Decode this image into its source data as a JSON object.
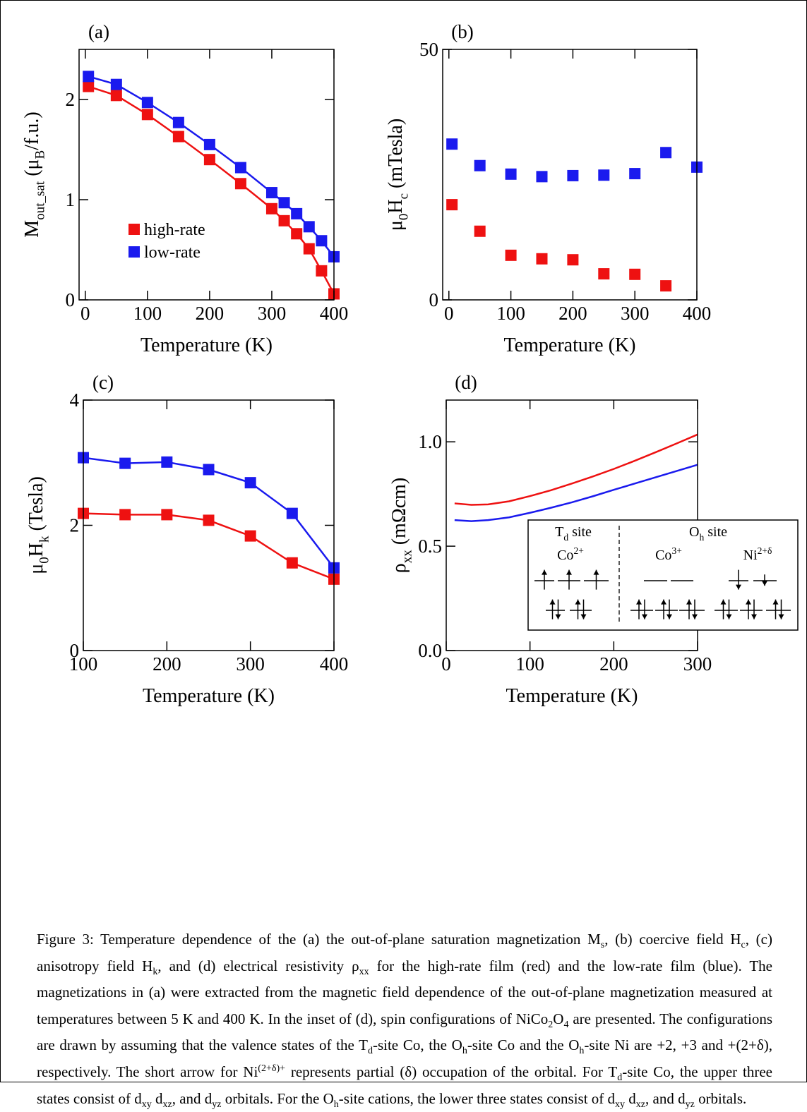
{
  "chart_data": [
    {
      "type": "line",
      "markers": true,
      "label": "(a)",
      "xlabel": [
        {
          "text": "Temperature (K)"
        }
      ],
      "ylabel": [
        {
          "text": "M"
        },
        {
          "text": "out_sat",
          "sub": true
        },
        {
          "text": " (μ"
        },
        {
          "text": "B",
          "sub": true
        },
        {
          "text": "/f.u.)"
        }
      ],
      "xlim": [
        -10,
        400
      ],
      "xticks": [
        0,
        100,
        200,
        300,
        400
      ],
      "ylim": [
        0,
        2.5
      ],
      "yticks": [
        0,
        1,
        2
      ],
      "legend": "lower left",
      "series": [
        {
          "name": "high-rate",
          "color": "#ee1111",
          "x": [
            5,
            50,
            100,
            150,
            200,
            250,
            300,
            320,
            340,
            360,
            380,
            400
          ],
          "values": [
            2.13,
            2.04,
            1.85,
            1.63,
            1.4,
            1.16,
            0.91,
            0.79,
            0.66,
            0.51,
            0.29,
            0.06
          ]
        },
        {
          "name": "low-rate",
          "color": "#1a1aee",
          "x": [
            5,
            50,
            100,
            150,
            200,
            250,
            300,
            320,
            340,
            360,
            380,
            400
          ],
          "values": [
            2.23,
            2.15,
            1.97,
            1.77,
            1.55,
            1.32,
            1.07,
            0.97,
            0.86,
            0.73,
            0.59,
            0.43
          ]
        }
      ]
    },
    {
      "type": "scatter",
      "label": "(b)",
      "xlabel": [
        {
          "text": "Temperature (K)"
        }
      ],
      "ylabel": [
        {
          "text": "μ"
        },
        {
          "text": "0",
          "sub": true
        },
        {
          "text": "H"
        },
        {
          "text": "c",
          "sub": true
        },
        {
          "text": " (mTesla)"
        }
      ],
      "xlim": [
        -10,
        400
      ],
      "xticks": [
        0,
        100,
        200,
        300,
        400
      ],
      "ylim": [
        0,
        50
      ],
      "yticks": [
        0,
        50
      ],
      "series": [
        {
          "color": "#ee1111",
          "x": [
            5,
            50,
            100,
            150,
            200,
            250,
            300,
            350
          ],
          "values": [
            19.0,
            13.7,
            8.9,
            8.2,
            8.0,
            5.2,
            5.1,
            2.8
          ]
        },
        {
          "color": "#1a1aee",
          "x": [
            5,
            50,
            100,
            150,
            200,
            250,
            300,
            350,
            400
          ],
          "values": [
            31.1,
            26.8,
            25.1,
            24.6,
            24.8,
            24.9,
            25.2,
            29.4,
            26.5
          ]
        }
      ]
    },
    {
      "type": "line",
      "markers": true,
      "label": "(c)",
      "xlabel": [
        {
          "text": "Temperature (K)"
        }
      ],
      "ylabel": [
        {
          "text": "μ"
        },
        {
          "text": "0",
          "sub": true
        },
        {
          "text": "H"
        },
        {
          "text": "k",
          "sub": true
        },
        {
          "text": " (Tesla)"
        }
      ],
      "xlim": [
        100,
        400
      ],
      "xticks": [
        100,
        200,
        300,
        400
      ],
      "ylim": [
        0,
        4
      ],
      "yticks": [
        0,
        2,
        4
      ],
      "series": [
        {
          "color": "#ee1111",
          "x": [
            100,
            150,
            200,
            250,
            300,
            350,
            400
          ],
          "values": [
            2.19,
            2.17,
            2.17,
            2.08,
            1.83,
            1.4,
            1.14
          ]
        },
        {
          "color": "#1a1aee",
          "x": [
            100,
            150,
            200,
            250,
            300,
            350,
            400
          ],
          "values": [
            3.08,
            2.99,
            3.01,
            2.89,
            2.68,
            2.19,
            1.32
          ]
        }
      ]
    },
    {
      "type": "line",
      "label": "(d)",
      "xlabel": [
        {
          "text": "Temperature (K)"
        }
      ],
      "ylabel": [
        {
          "text": "ρ"
        },
        {
          "text": "xx",
          "sub": true
        },
        {
          "text": " (mΩcm)"
        }
      ],
      "xlim": [
        0,
        300
      ],
      "xticks": [
        0,
        100,
        200,
        300
      ],
      "ylim": [
        0,
        1.2
      ],
      "yticks": [
        {
          "value": 0,
          "label": "0.0"
        },
        {
          "value": 0.5,
          "label": "0.5"
        },
        {
          "value": 1,
          "label": "1.0"
        }
      ],
      "series": [
        {
          "color": "#ee1111",
          "x": [
            10,
            30,
            50,
            75,
            100,
            125,
            150,
            175,
            200,
            225,
            250,
            275,
            300
          ],
          "values": [
            0.705,
            0.698,
            0.7,
            0.715,
            0.74,
            0.768,
            0.8,
            0.834,
            0.87,
            0.909,
            0.95,
            0.992,
            1.035
          ]
        },
        {
          "color": "#1a1aee",
          "x": [
            10,
            30,
            50,
            75,
            100,
            125,
            150,
            175,
            200,
            225,
            250,
            275,
            300
          ],
          "values": [
            0.625,
            0.62,
            0.625,
            0.638,
            0.66,
            0.684,
            0.71,
            0.739,
            0.77,
            0.8,
            0.83,
            0.86,
            0.89
          ]
        }
      ],
      "inset": {
        "td_site": [
          {
            "text": "T"
          },
          {
            "text": "d",
            "sub": true
          },
          {
            "text": " site"
          }
        ],
        "oh_site": [
          {
            "text": "O"
          },
          {
            "text": "h",
            "sub": true
          },
          {
            "text": " site"
          }
        ],
        "co2": [
          {
            "text": "Co"
          },
          {
            "text": "2+",
            "sup": true
          }
        ],
        "co3": [
          {
            "text": "Co"
          },
          {
            "text": "3+",
            "sup": true
          }
        ],
        "ni": [
          {
            "text": "Ni"
          },
          {
            "text": "2+δ",
            "sup": true
          }
        ]
      }
    }
  ],
  "caption": [
    {
      "text": "Figure 3: Temperature dependence of the (a) the out-of-plane saturation magnetization M"
    },
    {
      "text": "s",
      "sub": true
    },
    {
      "text": ", (b) coercive field H"
    },
    {
      "text": "c",
      "sub": true
    },
    {
      "text": ", (c) anisotropy field H"
    },
    {
      "text": "k",
      "sub": true
    },
    {
      "text": ", and (d) electrical resistivity ρ"
    },
    {
      "text": "xx",
      "sub": true
    },
    {
      "text": " for the high-rate film (red) and the low-rate film (blue). The magnetizations in (a) were extracted from the magnetic field dependence of the out-of-plane magnetization measured at temperatures between 5 K and 400 K. In the inset of (d), spin configurations of NiCo"
    },
    {
      "text": "2",
      "sub": true
    },
    {
      "text": "O"
    },
    {
      "text": "4",
      "sub": true
    },
    {
      "text": " are presented. The configurations are drawn by assuming that the valence states of the T"
    },
    {
      "text": "d",
      "sub": true
    },
    {
      "text": "-site Co, the O"
    },
    {
      "text": "h",
      "sub": true
    },
    {
      "text": "-site Co and the O"
    },
    {
      "text": "h",
      "sub": true
    },
    {
      "text": "-site Ni are +2, +3 and +(2+δ), respectively. The short arrow for Ni"
    },
    {
      "text": "(2+δ)+",
      "sup": true
    },
    {
      "text": " represents partial (δ) occupation of the orbital. For T"
    },
    {
      "text": "d",
      "sub": true
    },
    {
      "text": "-site Co, the upper three states consist of d"
    },
    {
      "text": "xy",
      "sub": true
    },
    {
      "text": " d"
    },
    {
      "text": "xz",
      "sub": true
    },
    {
      "text": ", and d"
    },
    {
      "text": "yz",
      "sub": true
    },
    {
      "text": " orbitals. For the O"
    },
    {
      "text": "h",
      "sub": true
    },
    {
      "text": "-site cations, the lower three states consist of d"
    },
    {
      "text": "xy",
      "sub": true
    },
    {
      "text": " d"
    },
    {
      "text": "xz",
      "sub": true
    },
    {
      "text": ", and d"
    },
    {
      "text": "yz",
      "sub": true
    },
    {
      "text": " orbitals."
    }
  ]
}
